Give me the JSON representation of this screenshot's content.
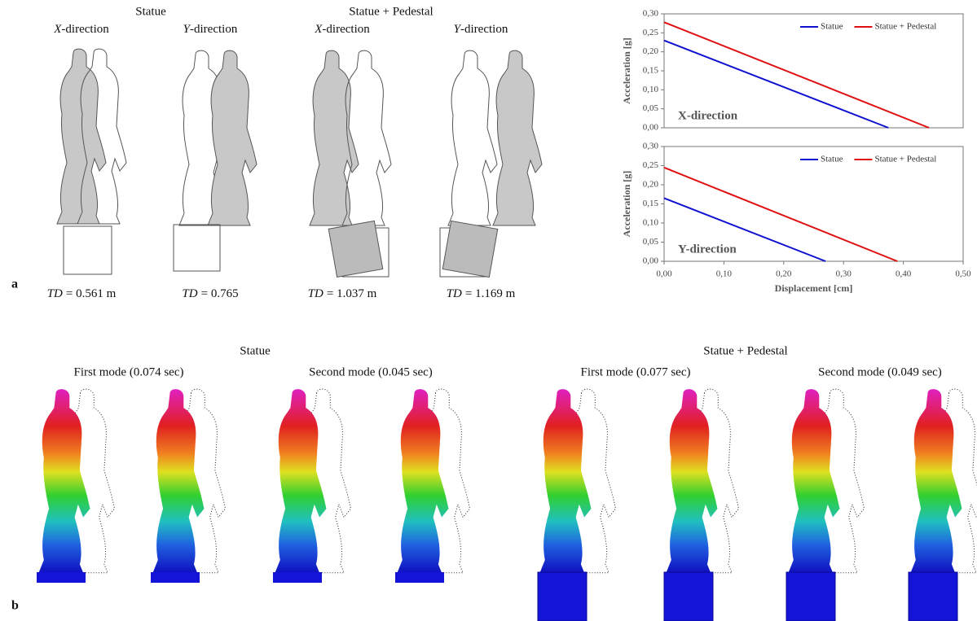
{
  "panel_a": {
    "label": "a",
    "groups": [
      {
        "title": "Statue",
        "directions": [
          {
            "axis": "X",
            "rest": "-direction"
          },
          {
            "axis": "Y",
            "rest": "-direction"
          }
        ]
      },
      {
        "title": "Statue + Pedestal",
        "directions": [
          {
            "axis": "X",
            "rest": "-direction"
          },
          {
            "axis": "Y",
            "rest": "-direction"
          }
        ]
      }
    ],
    "td_labels": [
      {
        "symbol": "TD",
        "rest": "= 0.561 m"
      },
      {
        "symbol": "TD",
        "rest": "= 0.765"
      },
      {
        "symbol": "TD",
        "rest": "= 1.037 m"
      },
      {
        "symbol": "TD",
        "rest": "= 1.169 m"
      }
    ]
  },
  "panel_b": {
    "label": "b",
    "groups": [
      {
        "title": "Statue",
        "modes": [
          "First mode (0.074 sec)",
          "Second mode (0.045 sec)"
        ]
      },
      {
        "title": "Statue + Pedestal",
        "modes": [
          "First mode (0.077 sec)",
          "Second mode (0.049 sec)"
        ]
      }
    ]
  },
  "chart_data": [
    {
      "type": "line",
      "ylabel": "Acceleration [g]",
      "annotation": "X-direction",
      "legend": "upper right",
      "xlim": [
        0,
        0.5
      ],
      "ylim": [
        0,
        0.3
      ],
      "yticks": [
        {
          "value": 0,
          "label": "0,00"
        },
        {
          "value": 0.05,
          "label": "0,05"
        },
        {
          "value": 0.1,
          "label": "0,10"
        },
        {
          "value": 0.15,
          "label": "0,15"
        },
        {
          "value": 0.2,
          "label": "0,20"
        },
        {
          "value": 0.25,
          "label": "0,25"
        },
        {
          "value": 0.3,
          "label": "0,30"
        }
      ],
      "series": [
        {
          "name": "Statue",
          "color": "#1010d0",
          "x": [
            0,
            0.375
          ],
          "values": [
            0.23,
            0
          ]
        },
        {
          "name": "Statue + Pedestal",
          "color": "#e01010",
          "x": [
            0,
            0.443
          ],
          "values": [
            0.278,
            0
          ]
        }
      ]
    },
    {
      "type": "line",
      "ylabel": "Acceleration [g]",
      "xlabel": "Displacement [cm]",
      "annotation": "Y-direction",
      "legend": "upper right",
      "xlim": [
        0,
        0.5
      ],
      "ylim": [
        0,
        0.3
      ],
      "xticks": [
        {
          "value": 0,
          "label": "0,00"
        },
        {
          "value": 0.1,
          "label": "0,10"
        },
        {
          "value": 0.2,
          "label": "0,20"
        },
        {
          "value": 0.3,
          "label": "0,30"
        },
        {
          "value": 0.4,
          "label": "0,40"
        },
        {
          "value": 0.5,
          "label": "0,50"
        }
      ],
      "yticks": [
        {
          "value": 0,
          "label": "0,00"
        },
        {
          "value": 0.05,
          "label": "0,05"
        },
        {
          "value": 0.1,
          "label": "0,10"
        },
        {
          "value": 0.15,
          "label": "0,15"
        },
        {
          "value": 0.2,
          "label": "0,20"
        },
        {
          "value": 0.25,
          "label": "0,25"
        },
        {
          "value": 0.3,
          "label": "0,30"
        }
      ],
      "series": [
        {
          "name": "Statue",
          "color": "#1010d0",
          "x": [
            0,
            0.27
          ],
          "values": [
            0.165,
            0
          ]
        },
        {
          "name": "Statue + Pedestal",
          "color": "#e01010",
          "x": [
            0,
            0.39
          ],
          "values": [
            0.245,
            0
          ]
        }
      ]
    }
  ]
}
